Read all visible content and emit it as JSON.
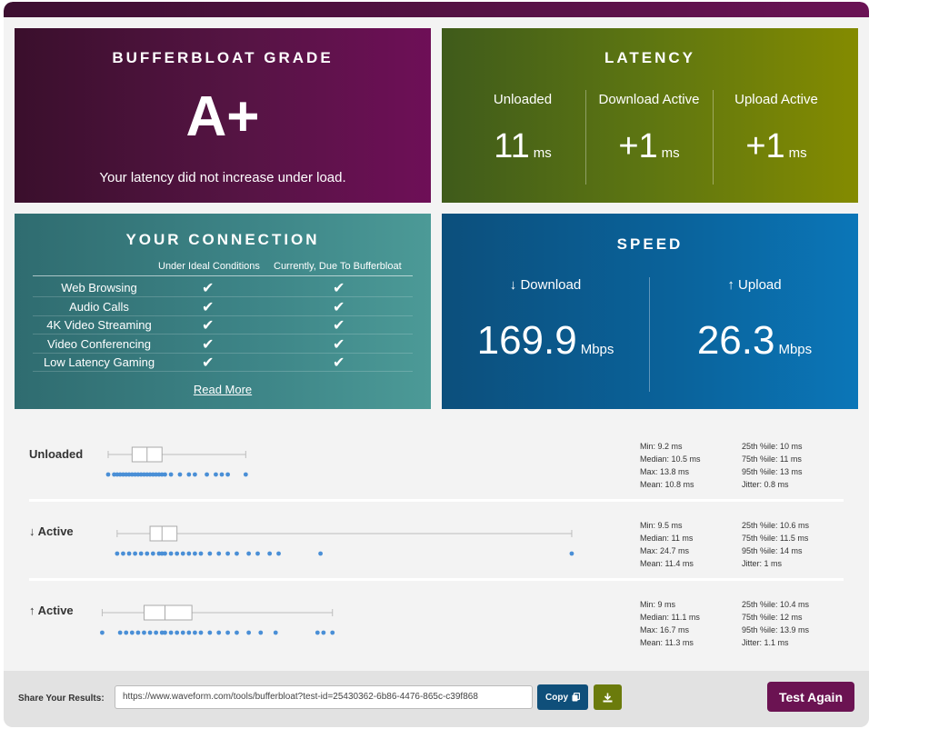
{
  "grade": {
    "title": "BUFFERBLOAT GRADE",
    "value": "A+",
    "note": "Your latency did not increase under load."
  },
  "latency": {
    "title": "LATENCY",
    "columns": [
      {
        "label": "Unloaded",
        "value": "11",
        "unit": "ms"
      },
      {
        "label": "Download Active",
        "value": "+1",
        "unit": "ms"
      },
      {
        "label": "Upload Active",
        "value": "+1",
        "unit": "ms"
      }
    ]
  },
  "connection": {
    "title": "YOUR CONNECTION",
    "col_ideal": "Under Ideal Conditions",
    "col_current": "Currently, Due To Bufferbloat",
    "rows": [
      {
        "label": "Web Browsing",
        "ideal": "✔",
        "current": "✔"
      },
      {
        "label": "Audio Calls",
        "ideal": "✔",
        "current": "✔"
      },
      {
        "label": "4K Video Streaming",
        "ideal": "✔",
        "current": "✔"
      },
      {
        "label": "Video Conferencing",
        "ideal": "✔",
        "current": "✔"
      },
      {
        "label": "Low Latency Gaming",
        "ideal": "✔",
        "current": "✔"
      }
    ],
    "read_more": "Read More"
  },
  "speed": {
    "title": "SPEED",
    "download_label": "↓ Download",
    "download_value": "169.9",
    "upload_label": "↑ Upload",
    "upload_value": "26.3",
    "unit": "Mbps"
  },
  "stats": [
    {
      "label": "Unloaded",
      "min": "Min: 9.2 ms",
      "median": "Median: 10.5 ms",
      "max": "Max: 13.8 ms",
      "mean": "Mean: 10.8 ms",
      "p25": "25th %ile: 10 ms",
      "p75": "75th %ile: 11 ms",
      "p95": "95th %ile: 13 ms",
      "jitter": "Jitter: 0.8 ms",
      "box": {
        "min": 9.2,
        "q1": 10,
        "median": 10.5,
        "q3": 11,
        "max": 13.8
      },
      "points": [
        9.2,
        9.4,
        9.5,
        9.6,
        9.7,
        9.8,
        9.9,
        10.0,
        10.1,
        10.2,
        10.3,
        10.4,
        10.5,
        10.6,
        10.7,
        10.8,
        10.9,
        11.0,
        11.1,
        11.3,
        11.6,
        11.9,
        12.1,
        12.5,
        12.8,
        13.0,
        13.2,
        13.8
      ]
    },
    {
      "label": "↓ Active",
      "min": "Min: 9.5 ms",
      "median": "Median: 11 ms",
      "max": "Max: 24.7 ms",
      "mean": "Mean: 11.4 ms",
      "p25": "25th %ile: 10.6 ms",
      "p75": "75th %ile: 11.5 ms",
      "p95": "95th %ile: 14 ms",
      "jitter": "Jitter: 1 ms",
      "box": {
        "min": 9.5,
        "q1": 10.6,
        "median": 11,
        "q3": 11.5,
        "max": 24.7
      },
      "points": [
        9.5,
        9.7,
        9.9,
        10.1,
        10.3,
        10.5,
        10.7,
        10.9,
        11.0,
        11.1,
        11.3,
        11.5,
        11.7,
        11.9,
        12.1,
        12.3,
        12.6,
        12.9,
        13.2,
        13.5,
        13.9,
        14.2,
        14.6,
        14.9,
        16.3,
        24.7
      ]
    },
    {
      "label": "↑ Active",
      "min": "Min: 9 ms",
      "median": "Median: 11.1 ms",
      "max": "Max: 16.7 ms",
      "mean": "Mean: 11.3 ms",
      "p25": "25th %ile: 10.4 ms",
      "p75": "75th %ile: 12 ms",
      "p95": "95th %ile: 13.9 ms",
      "jitter": "Jitter: 1.1 ms",
      "box": {
        "min": 9,
        "q1": 10.4,
        "median": 11.1,
        "q3": 12,
        "max": 16.7
      },
      "points": [
        9.0,
        9.6,
        9.8,
        10.0,
        10.2,
        10.4,
        10.6,
        10.8,
        11.0,
        11.1,
        11.3,
        11.5,
        11.7,
        11.9,
        12.1,
        12.3,
        12.6,
        12.9,
        13.2,
        13.5,
        13.9,
        14.3,
        14.8,
        16.2,
        16.4,
        16.7
      ]
    }
  ],
  "footer": {
    "share_label": "Share Your Results:",
    "share_url": "https://www.waveform.com/tools/bufferbloat?test-id=25430362-6b86-4476-865c-c39f868",
    "copy_label": "Copy",
    "download_icon": "download-icon",
    "test_again": "Test Again"
  },
  "colors": {
    "grade_bg": "#561444",
    "latency_bg": "#5e7611",
    "connection_bg": "#3e8688",
    "speed_bg": "#0a629a",
    "dot": "#4a8fd6"
  }
}
